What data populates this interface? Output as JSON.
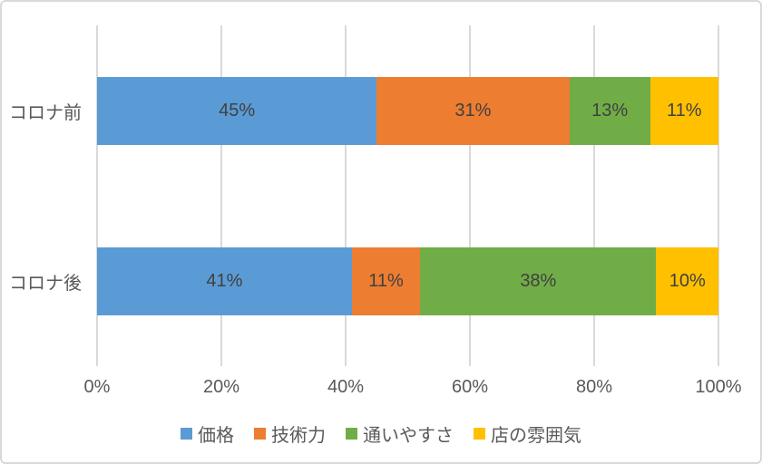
{
  "chart_data": {
    "type": "bar",
    "orientation": "horizontal",
    "stacked": true,
    "title": "",
    "categories": [
      "コロナ前",
      "コロナ後"
    ],
    "series": [
      {
        "name": "価格",
        "color": "#5B9BD5",
        "values": [
          45,
          41
        ]
      },
      {
        "name": "技術力",
        "color": "#ED7D31",
        "values": [
          31,
          11
        ]
      },
      {
        "name": "通いやすさ",
        "color": "#70AD47",
        "values": [
          13,
          38
        ]
      },
      {
        "name": "店の雰囲気",
        "color": "#FFC000",
        "values": [
          11,
          10
        ]
      }
    ],
    "data_labels": [
      [
        "45%",
        "31%",
        "13%",
        "11%"
      ],
      [
        "41%",
        "11%",
        "38%",
        "10%"
      ]
    ],
    "x_ticks": [
      "0%",
      "20%",
      "40%",
      "60%",
      "80%",
      "100%"
    ],
    "xlim": [
      0,
      100
    ],
    "grid": true,
    "legend_position": "bottom",
    "legend": [
      "価格",
      "技術力",
      "通いやすさ",
      "店の雰囲気"
    ]
  },
  "colors": {
    "background": "#FFFFFF",
    "border": "#D9D9D9",
    "gridline": "#D9D9D9",
    "axis_text": "#595959",
    "data_label_text": "#404040"
  }
}
